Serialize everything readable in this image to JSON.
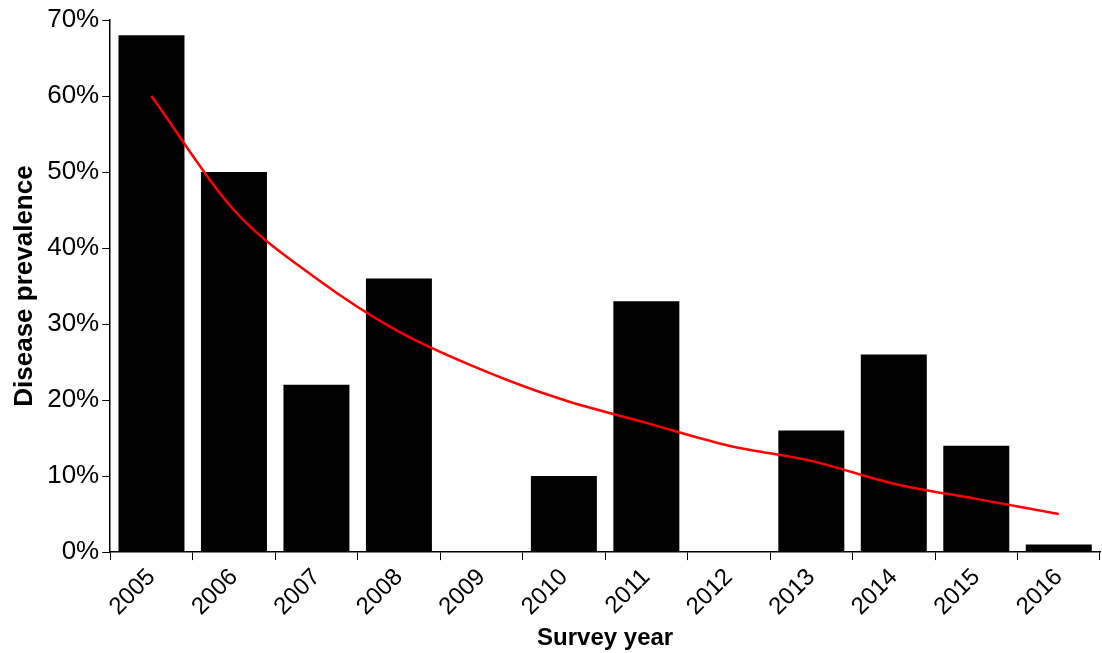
{
  "chart_data": {
    "type": "bar",
    "xlabel": "Survey year",
    "ylabel": "Disease prevalence",
    "categories": [
      "2005",
      "2006",
      "2007",
      "2008",
      "2009",
      "2010",
      "2011",
      "2012",
      "2013",
      "2014",
      "2015",
      "2016"
    ],
    "series": [
      {
        "color": "#000000",
        "values": [
          68,
          50,
          22,
          36,
          0,
          10,
          33,
          0,
          16,
          26,
          14,
          1
        ]
      },
      {
        "type": "line",
        "color": "#ff0000",
        "values": [
          60,
          45,
          36,
          29,
          24,
          20,
          17,
          14,
          12,
          9,
          7,
          5
        ]
      }
    ],
    "ylim": [
      0,
      70
    ],
    "yticks": [
      {
        "value": 0,
        "label": "0%"
      },
      {
        "value": 10,
        "label": "10%"
      },
      {
        "value": 20,
        "label": "20%"
      },
      {
        "value": 30,
        "label": "30%"
      },
      {
        "value": 40,
        "label": "40%"
      },
      {
        "value": 50,
        "label": "50%"
      },
      {
        "value": 60,
        "label": "60%"
      },
      {
        "value": 70,
        "label": "70%"
      }
    ],
    "grid": false,
    "legend": false,
    "marker": "none",
    "line_style": "solid"
  }
}
